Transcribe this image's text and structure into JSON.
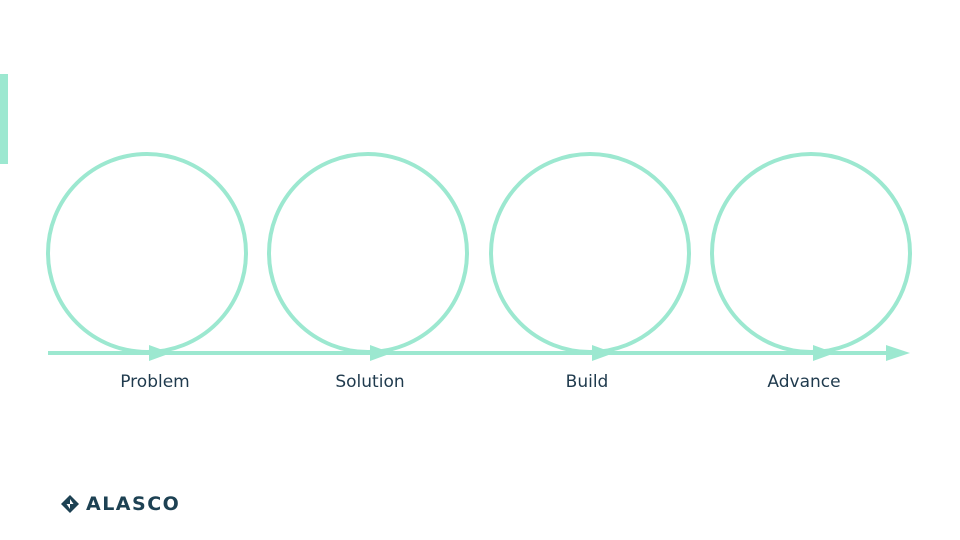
{
  "colors": {
    "accent": "#9ce8d0",
    "label": "#1f3a4d",
    "logo": "#1d4153"
  },
  "stages": [
    {
      "label": "Problem"
    },
    {
      "label": "Solution"
    },
    {
      "label": "Build"
    },
    {
      "label": "Advance"
    }
  ],
  "logo": {
    "text": "ALASCO",
    "icon": "alasco-diamond-icon"
  }
}
